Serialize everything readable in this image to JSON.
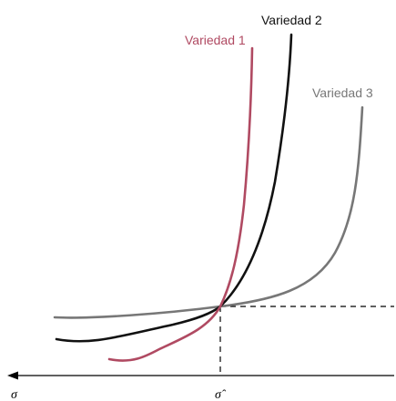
{
  "curves": [
    {
      "key": "v1",
      "name": "Variedad 1",
      "color": "#b04a62"
    },
    {
      "key": "v2",
      "name": "Variedad 2",
      "color": "#111111"
    },
    {
      "key": "v3",
      "name": "Variedad 3",
      "color": "#777777"
    }
  ],
  "axis": {
    "origin_label": "σ",
    "marker_label": "σ̂"
  },
  "colors": {
    "axis": "#000000",
    "guide": "#000000",
    "background": "#ffffff"
  }
}
